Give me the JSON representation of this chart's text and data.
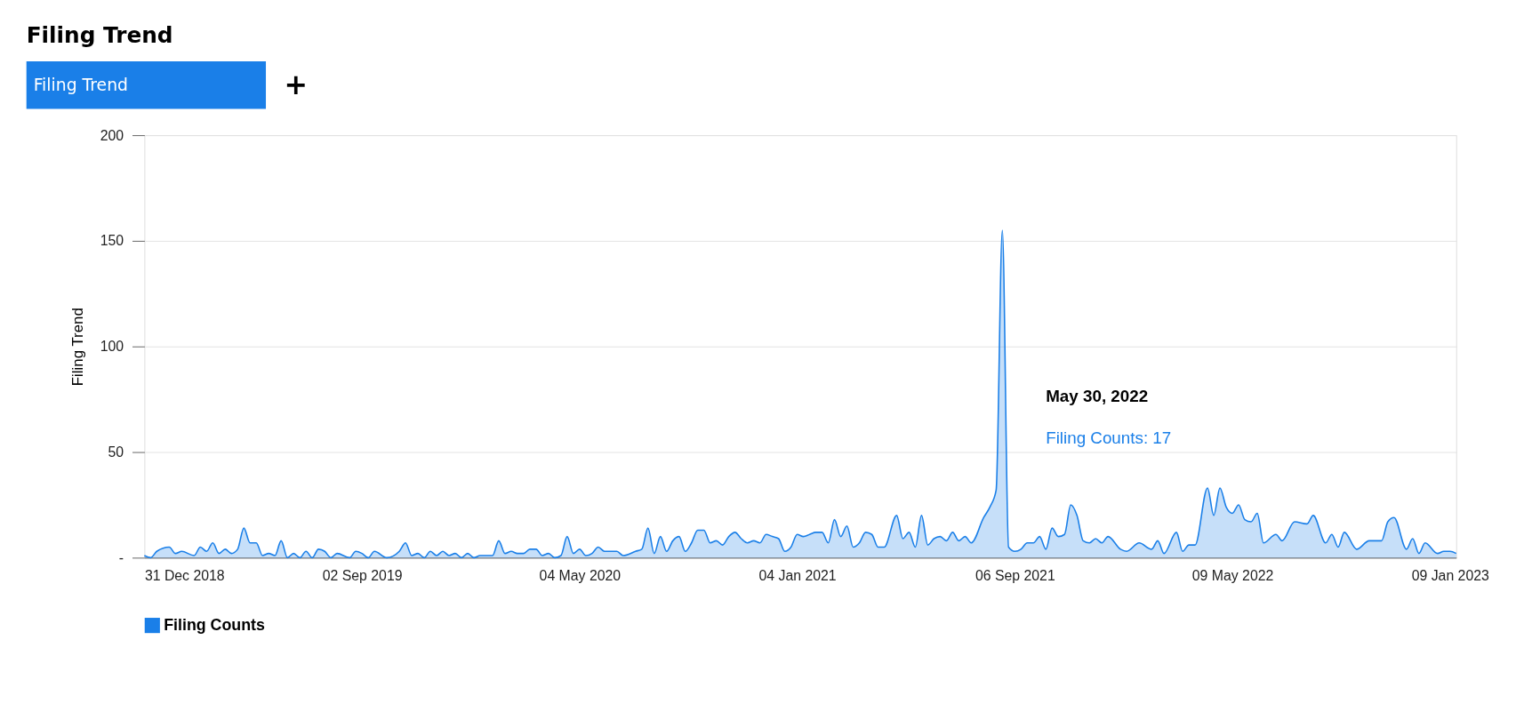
{
  "chart_data": {
    "type": "area",
    "title": "Filing Trend",
    "ylabel": "Filing Trend",
    "annotations": [
      "Filing Trend",
      "+",
      "May 30, 2022",
      "Filing Counts: 17"
    ],
    "xlim": [
      "2018-12-31",
      "2023-01-16"
    ],
    "xticks": [
      {
        "value": "2018-12-31",
        "label": "31 Dec 2018"
      },
      {
        "value": "2019-09-02",
        "label": "02 Sep 2019"
      },
      {
        "value": "2020-05-04",
        "label": "04 May 2020"
      },
      {
        "value": "2021-01-04",
        "label": "04 Jan 2021"
      },
      {
        "value": "2021-09-06",
        "label": "06 Sep 2021"
      },
      {
        "value": "2022-05-09",
        "label": "09 May 2022"
      },
      {
        "value": "2023-01-09",
        "label": "09 Jan 2023"
      }
    ],
    "ylim": [
      0,
      200
    ],
    "yticks": [
      {
        "value": 0,
        "label": "-"
      },
      50,
      100,
      150,
      200
    ],
    "grid": "y",
    "legend": "bottom",
    "series": [
      {
        "name": "Filing Counts",
        "color": "#1a7fe8",
        "x": [
          "2018-12-31",
          "2019-01-07",
          "2019-01-14",
          "2019-01-28",
          "2019-02-04",
          "2019-02-11",
          "2019-02-25",
          "2019-03-04",
          "2019-03-11",
          "2019-03-18",
          "2019-03-25",
          "2019-04-01",
          "2019-04-08",
          "2019-04-15",
          "2019-04-22",
          "2019-04-29",
          "2019-05-06",
          "2019-05-13",
          "2019-05-20",
          "2019-05-27",
          "2019-06-03",
          "2019-06-10",
          "2019-06-17",
          "2019-06-24",
          "2019-07-01",
          "2019-07-08",
          "2019-07-15",
          "2019-07-22",
          "2019-07-29",
          "2019-08-05",
          "2019-08-19",
          "2019-08-26",
          "2019-09-02",
          "2019-09-09",
          "2019-09-16",
          "2019-09-30",
          "2019-10-14",
          "2019-10-21",
          "2019-10-28",
          "2019-11-04",
          "2019-11-11",
          "2019-11-18",
          "2019-11-25",
          "2019-12-02",
          "2019-12-09",
          "2019-12-16",
          "2019-12-23",
          "2019-12-30",
          "2020-01-06",
          "2020-01-13",
          "2020-01-27",
          "2020-02-03",
          "2020-02-10",
          "2020-02-17",
          "2020-02-24",
          "2020-03-02",
          "2020-03-09",
          "2020-03-16",
          "2020-03-23",
          "2020-03-30",
          "2020-04-06",
          "2020-04-13",
          "2020-04-20",
          "2020-04-27",
          "2020-05-04",
          "2020-05-11",
          "2020-05-18",
          "2020-05-25",
          "2020-06-01",
          "2020-06-08",
          "2020-06-15",
          "2020-06-22",
          "2020-07-06",
          "2020-07-13",
          "2020-07-20",
          "2020-07-27",
          "2020-08-03",
          "2020-08-10",
          "2020-08-17",
          "2020-08-24",
          "2020-08-31",
          "2020-09-07",
          "2020-09-14",
          "2020-09-21",
          "2020-09-28",
          "2020-10-05",
          "2020-10-12",
          "2020-10-19",
          "2020-10-26",
          "2020-11-02",
          "2020-11-09",
          "2020-11-16",
          "2020-11-23",
          "2020-11-30",
          "2020-12-07",
          "2020-12-14",
          "2020-12-21",
          "2020-12-28",
          "2021-01-04",
          "2021-01-11",
          "2021-01-18",
          "2021-01-25",
          "2021-02-01",
          "2021-02-08",
          "2021-02-15",
          "2021-02-22",
          "2021-03-01",
          "2021-03-08",
          "2021-03-15",
          "2021-03-22",
          "2021-03-29",
          "2021-04-05",
          "2021-04-12",
          "2021-04-26",
          "2021-05-03",
          "2021-05-10",
          "2021-05-17",
          "2021-05-24",
          "2021-05-31",
          "2021-06-07",
          "2021-06-14",
          "2021-06-21",
          "2021-06-28",
          "2021-07-05",
          "2021-07-12",
          "2021-07-19",
          "2021-08-02",
          "2021-08-09",
          "2021-08-16",
          "2021-08-23",
          "2021-08-30",
          "2021-09-06",
          "2021-09-13",
          "2021-09-20",
          "2021-09-27",
          "2021-10-04",
          "2021-10-11",
          "2021-10-18",
          "2021-10-25",
          "2021-11-01",
          "2021-11-08",
          "2021-11-15",
          "2021-11-22",
          "2021-11-29",
          "2021-12-06",
          "2021-12-13",
          "2021-12-20",
          "2022-01-03",
          "2022-01-10",
          "2022-01-24",
          "2022-02-07",
          "2022-02-14",
          "2022-02-21",
          "2022-03-07",
          "2022-03-14",
          "2022-03-21",
          "2022-03-28",
          "2022-04-11",
          "2022-04-18",
          "2022-04-25",
          "2022-05-02",
          "2022-05-09",
          "2022-05-16",
          "2022-05-23",
          "2022-05-30",
          "2022-06-06",
          "2022-06-13",
          "2022-06-27",
          "2022-07-04",
          "2022-07-18",
          "2022-08-01",
          "2022-08-08",
          "2022-08-22",
          "2022-08-29",
          "2022-09-05",
          "2022-09-12",
          "2022-09-26",
          "2022-10-10",
          "2022-10-24",
          "2022-10-31",
          "2022-11-07",
          "2022-11-21",
          "2022-11-28",
          "2022-12-05",
          "2022-12-12",
          "2022-12-26",
          "2023-01-02",
          "2023-01-09",
          "2023-01-16"
        ],
        "values": [
          1,
          0,
          3,
          5,
          2,
          3,
          1,
          5,
          3,
          7,
          2,
          4,
          2,
          4,
          14,
          7,
          7,
          1,
          2,
          1,
          8,
          0,
          2,
          0,
          3,
          0,
          4,
          3,
          0,
          2,
          0,
          3,
          2,
          0,
          3,
          0,
          3,
          7,
          1,
          2,
          0,
          3,
          1,
          3,
          1,
          2,
          0,
          2,
          0,
          1,
          1,
          8,
          2,
          3,
          2,
          2,
          4,
          4,
          1,
          2,
          0,
          1,
          10,
          2,
          4,
          1,
          2,
          5,
          3,
          3,
          3,
          1,
          3,
          4,
          14,
          2,
          10,
          3,
          8,
          10,
          3,
          7,
          13,
          13,
          7,
          8,
          6,
          10,
          12,
          9,
          7,
          8,
          7,
          11,
          10,
          9,
          3,
          5,
          11,
          10,
          11,
          12,
          12,
          7,
          18,
          10,
          15,
          5,
          7,
          12,
          11,
          5,
          5,
          20,
          9,
          12,
          5,
          20,
          6,
          9,
          10,
          8,
          12,
          8,
          10,
          7,
          19,
          24,
          32,
          155,
          5,
          3,
          4,
          7,
          7,
          10,
          4,
          14,
          10,
          11,
          25,
          20,
          8,
          7,
          9,
          7,
          10,
          4,
          3,
          7,
          4,
          8,
          2,
          12,
          3,
          6,
          6,
          33,
          20,
          33,
          24,
          21,
          25,
          18,
          17,
          21,
          7,
          11,
          8,
          17,
          16,
          20,
          7,
          11,
          5,
          12,
          4,
          8,
          8,
          17,
          19,
          4,
          9,
          2,
          7,
          2,
          3,
          3,
          2
        ]
      }
    ]
  }
}
